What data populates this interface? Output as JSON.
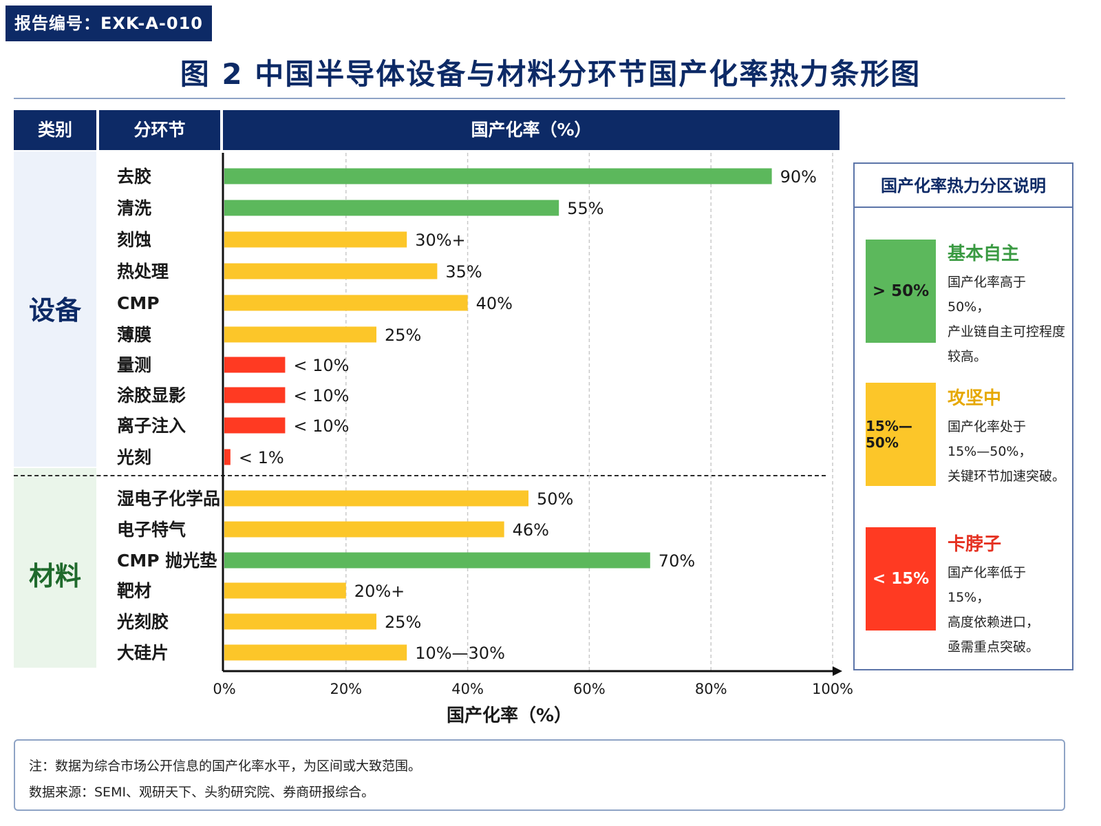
{
  "report_id": "报告编号：EXK-A-010",
  "figure_title": "图 2   中国半导体设备与材料分环节国产化率热力条形图",
  "table_header": {
    "category": "类别",
    "segment": "分环节",
    "rate": "国产化率（%）"
  },
  "categories": {
    "equipment": "设备",
    "materials": "材料"
  },
  "chart_data": {
    "type": "bar",
    "orientation": "horizontal",
    "xlabel": "国产化率（%）",
    "xlim": [
      0,
      100
    ],
    "xticks": [
      "0%",
      "20%",
      "40%",
      "60%",
      "80%",
      "100%"
    ],
    "grid": true,
    "rows": [
      {
        "group": "设备",
        "label": "去胶",
        "value": 90,
        "value_label": "90%",
        "zone": "green"
      },
      {
        "group": "设备",
        "label": "清洗",
        "value": 55,
        "value_label": "55%",
        "zone": "green"
      },
      {
        "group": "设备",
        "label": "刻蚀",
        "value": 30,
        "value_label": "30%+",
        "zone": "yellow"
      },
      {
        "group": "设备",
        "label": "热处理",
        "value": 35,
        "value_label": "35%",
        "zone": "yellow"
      },
      {
        "group": "设备",
        "label": "CMP",
        "value": 40,
        "value_label": "40%",
        "zone": "yellow"
      },
      {
        "group": "设备",
        "label": "薄膜",
        "value": 25,
        "value_label": "25%",
        "zone": "yellow"
      },
      {
        "group": "设备",
        "label": "量测",
        "value": 10,
        "value_label": "< 10%",
        "zone": "red"
      },
      {
        "group": "设备",
        "label": "涂胶显影",
        "value": 10,
        "value_label": "< 10%",
        "zone": "red"
      },
      {
        "group": "设备",
        "label": "离子注入",
        "value": 10,
        "value_label": "< 10%",
        "zone": "red"
      },
      {
        "group": "设备",
        "label": "光刻",
        "value": 1,
        "value_label": "< 1%",
        "zone": "red"
      },
      {
        "group": "材料",
        "label": "湿电子化学品",
        "value": 50,
        "value_label": "50%",
        "zone": "yellow"
      },
      {
        "group": "材料",
        "label": "电子特气",
        "value": 46,
        "value_label": "46%",
        "zone": "yellow"
      },
      {
        "group": "材料",
        "label": "CMP 抛光垫",
        "value": 70,
        "value_label": "70%",
        "zone": "green"
      },
      {
        "group": "材料",
        "label": "靶材",
        "value": 20,
        "value_label": "20%+",
        "zone": "yellow"
      },
      {
        "group": "材料",
        "label": "光刻胶",
        "value": 25,
        "value_label": "25%",
        "zone": "yellow"
      },
      {
        "group": "材料",
        "label": "大硅片",
        "value": 30,
        "value_label": "10%—30%",
        "zone": "yellow"
      }
    ]
  },
  "colors": {
    "green": "#5cb85c",
    "yellow": "#fcc629",
    "red": "#ff3a22",
    "navy": "#0d2a66"
  },
  "legend": {
    "title": "国产化率热力分区说明",
    "zones": [
      {
        "range": "> 50%",
        "name": "基本自主",
        "desc1": "国产化率高于 50%，",
        "desc2": "产业链自主可控程度",
        "desc3": "较高。"
      },
      {
        "range": "15%—50%",
        "name": "攻坚中",
        "desc1": "国产化率处于",
        "desc2": "15%—50%，",
        "desc3": "关键环节加速突破。"
      },
      {
        "range": "< 15%",
        "name": "卡脖子",
        "desc1": "国产化率低于 15%，",
        "desc2": "高度依赖进口，",
        "desc3": "亟需重点突破。"
      }
    ]
  },
  "notes": {
    "note": "注：数据为综合市场公开信息的国产化率水平，为区间或大致范围。",
    "source": "数据来源：SEMI、观研天下、头豹研究院、券商研报综合。"
  }
}
